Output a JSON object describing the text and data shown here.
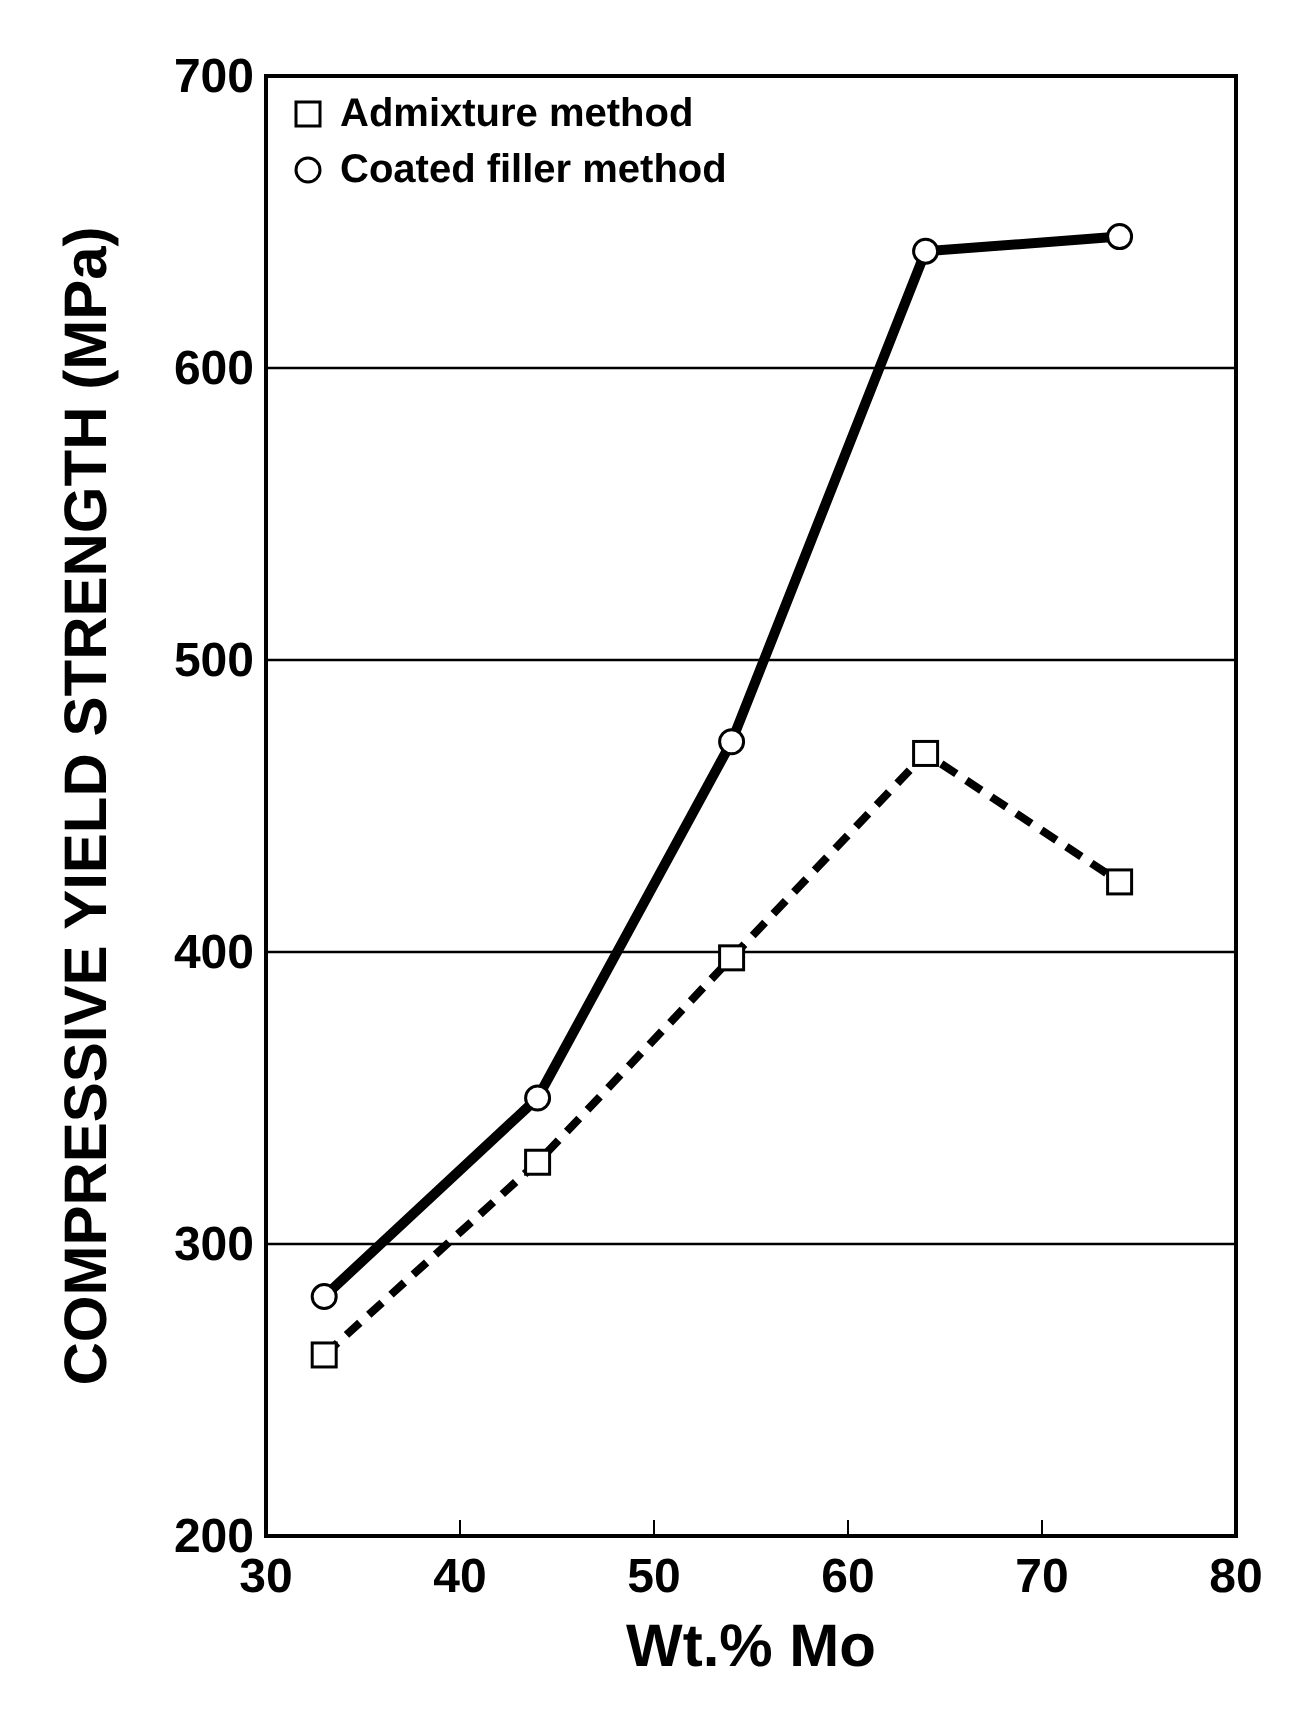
{
  "chart_data": {
    "type": "line",
    "xlabel": "Wt.% Mo",
    "ylabel": "COMPRESSIVE YIELD STRENGTH (MPa)",
    "xlim": [
      30,
      80
    ],
    "xticks": [
      30,
      40,
      50,
      60,
      70,
      80
    ],
    "ylim": [
      200,
      700
    ],
    "yticks": [
      200,
      300,
      400,
      500,
      600,
      700
    ],
    "grid": "y",
    "legend": "top left",
    "series": [
      {
        "name": "Admixture method",
        "color": "#000000",
        "x": [
          33,
          44,
          54,
          64,
          74
        ],
        "values": [
          262,
          328,
          398,
          468,
          424
        ],
        "marker": "square",
        "line_style": "dashed"
      },
      {
        "name": "Coated filler method",
        "color": "#000000",
        "x": [
          33,
          44,
          54,
          64,
          74
        ],
        "values": [
          282,
          350,
          472,
          640,
          645
        ],
        "marker": "circle",
        "line_style": "solid"
      }
    ]
  }
}
